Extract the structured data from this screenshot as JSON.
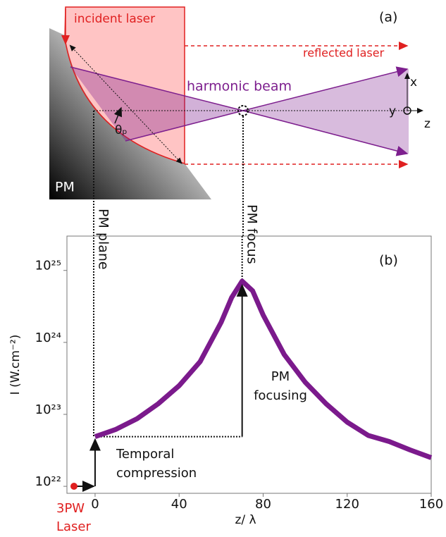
{
  "diagram": {
    "panel_label": "(a)",
    "incident": "incident laser",
    "reflected": "reflected laser",
    "harmonic": "harmonic beam",
    "mirror": "PM",
    "angle": "θₚ",
    "axis_x": "x",
    "axis_y": "y",
    "axis_z": "z",
    "plane_label": "PM plane",
    "focus_label": "PM focus"
  },
  "chart_data": {
    "type": "line",
    "panel_label": "(b)",
    "ylabel": "I (W.cm⁻²)",
    "xlabel": "z/ λ",
    "color": "#7b1a8c",
    "log_y": true,
    "x": [
      0,
      5,
      10,
      20,
      30,
      40,
      50,
      60,
      65,
      70,
      75,
      80,
      90,
      100,
      110,
      120,
      130,
      140,
      150,
      160
    ],
    "values": [
      4.9e+22,
      5.5e+22,
      6.2e+22,
      8.7e+22,
      1.4e+23,
      2.5e+23,
      5.4e+23,
      1.9e+24,
      4.2e+24,
      7.1e+24,
      5.2e+24,
      2.4e+24,
      6.8e+23,
      2.8e+23,
      1.4e+23,
      7.8e+22,
      5.1e+22,
      4.2e+22,
      3.2e+22,
      2.5e+22
    ],
    "xlim": [
      -13.4,
      160
    ],
    "xticks": [
      0,
      40,
      80,
      120,
      160
    ],
    "ylim": [
      8e+21,
      3e+25
    ],
    "yticks": [
      {
        "value": 1e+22,
        "label": "10²²"
      },
      {
        "value": 1e+23,
        "label": "10²³"
      },
      {
        "value": 1e+24,
        "label": "10²⁴"
      },
      {
        "value": 1e+25,
        "label": "10²⁵"
      }
    ],
    "annotations": {
      "focusing": [
        "PM",
        "focusing"
      ],
      "compression": [
        "Temporal",
        "compression"
      ],
      "source": [
        "3PW",
        "Laser"
      ]
    }
  }
}
